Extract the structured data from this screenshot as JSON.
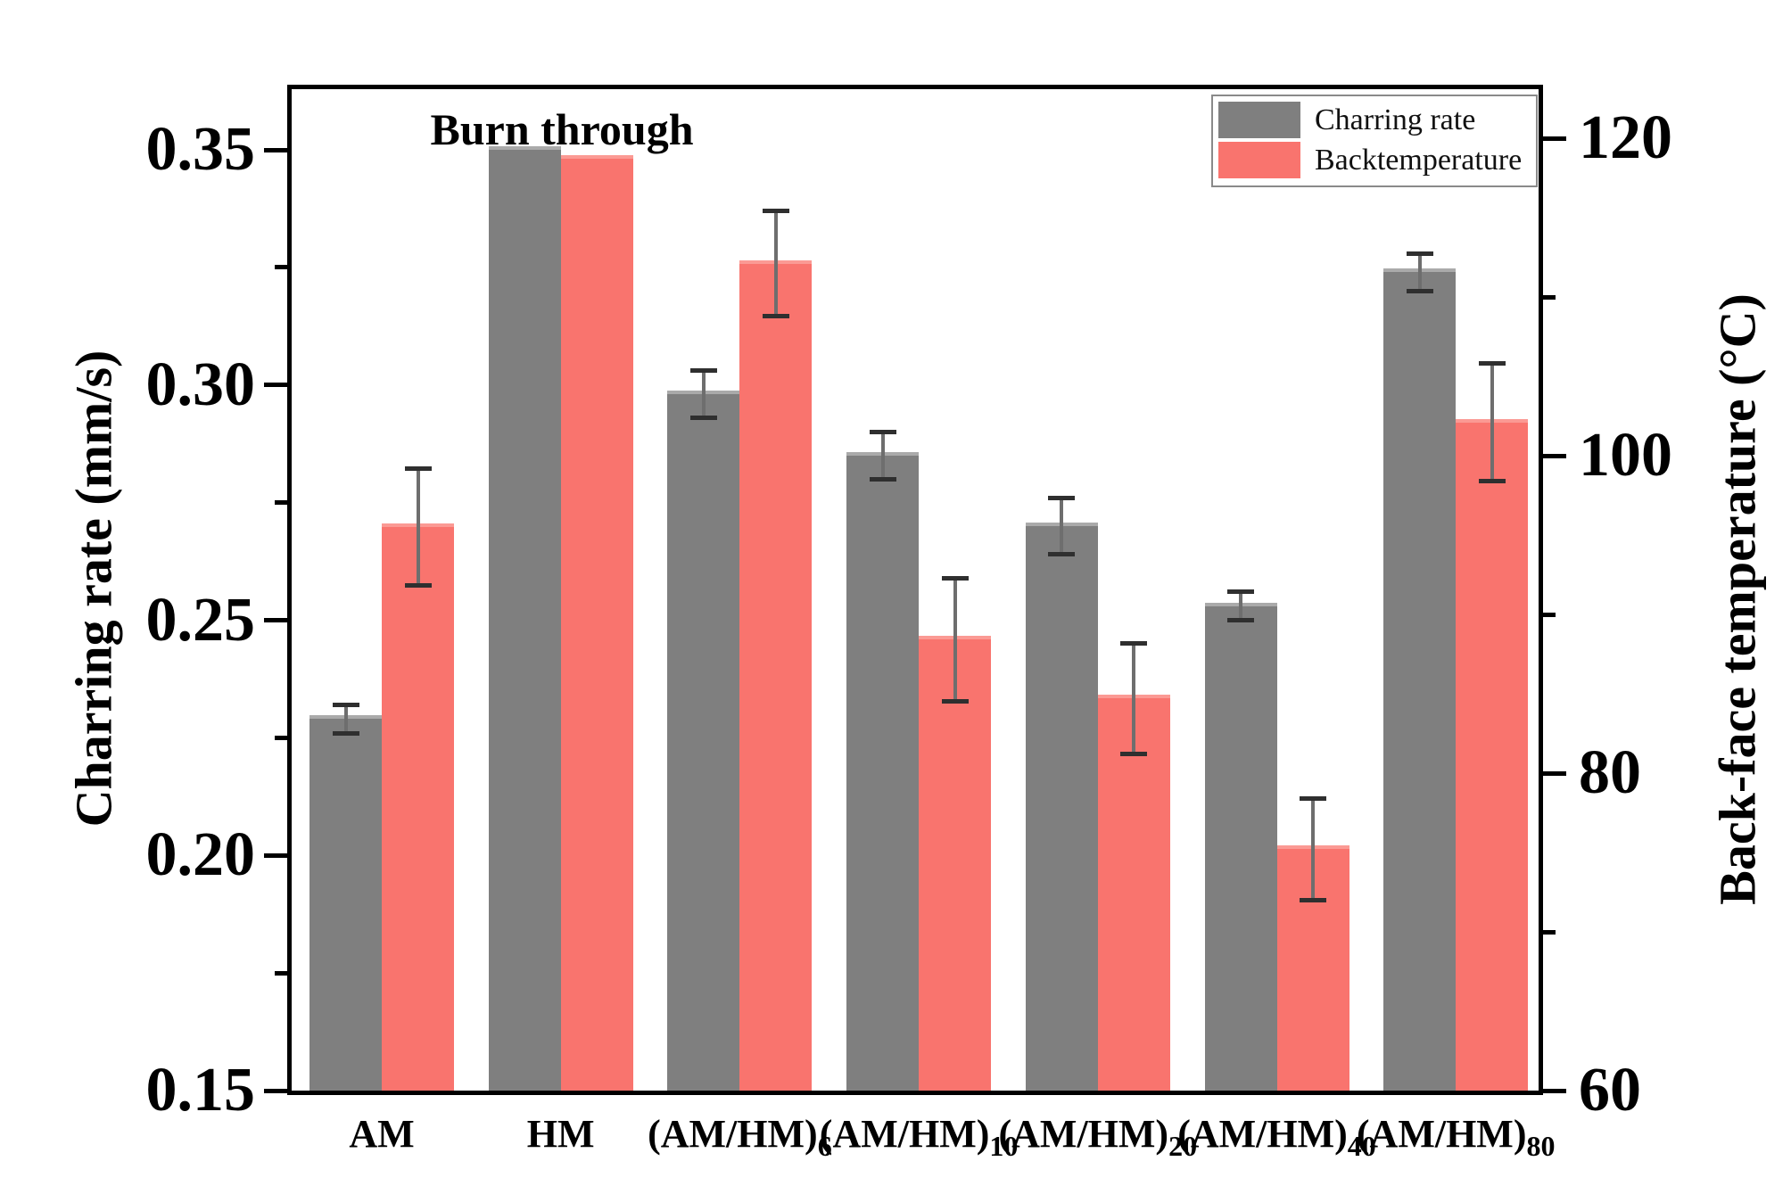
{
  "chart_data": {
    "type": "bar",
    "annotation": "Burn through",
    "categories": [
      {
        "base": "AM",
        "sub": ""
      },
      {
        "base": "HM",
        "sub": ""
      },
      {
        "base": "(AM/HM)",
        "sub": "6"
      },
      {
        "base": "(AM/HM)",
        "sub": "10"
      },
      {
        "base": "(AM/HM)",
        "sub": "20"
      },
      {
        "base": "(AM/HM)",
        "sub": "40"
      },
      {
        "base": "(AM/HM)",
        "sub": "80"
      }
    ],
    "series": [
      {
        "name": "Charring rate",
        "axis": "left",
        "color": "#7f7f7f",
        "values": [
          0.229,
          0.35,
          0.298,
          0.285,
          0.27,
          0.253,
          0.324
        ],
        "errors": [
          0.003,
          0,
          0.005,
          0.005,
          0.006,
          0.003,
          0.004
        ]
      },
      {
        "name": "Backtemperature",
        "axis": "right",
        "color": "#f9746e",
        "values": [
          95.5,
          118.7,
          112.1,
          88.4,
          84.7,
          75.2,
          102.1
        ],
        "errors": [
          3.7,
          0,
          3.3,
          3.9,
          3.5,
          3.2,
          3.7
        ]
      }
    ],
    "axes": {
      "left": {
        "label": "Charring rate (mm/s)",
        "min": 0.15,
        "max": 0.365,
        "ticks": [
          0.15,
          0.2,
          0.25,
          0.3,
          0.35
        ],
        "tick_labels": [
          "0.15",
          "0.20",
          "0.25",
          "0.30",
          "0.35"
        ],
        "minor_ticks": [
          0.175,
          0.225,
          0.275,
          0.325
        ]
      },
      "right": {
        "label": "Back-face temperature (°C)",
        "min": 60,
        "max": 123.6,
        "ticks": [
          60,
          80,
          100,
          120
        ],
        "tick_labels": [
          "60",
          "80",
          "100",
          "120"
        ],
        "minor_ticks": [
          70,
          90,
          110
        ]
      }
    },
    "legend": {
      "position": "top-right",
      "entries": [
        "Charring rate",
        "Backtemperature"
      ]
    },
    "grid": false
  }
}
